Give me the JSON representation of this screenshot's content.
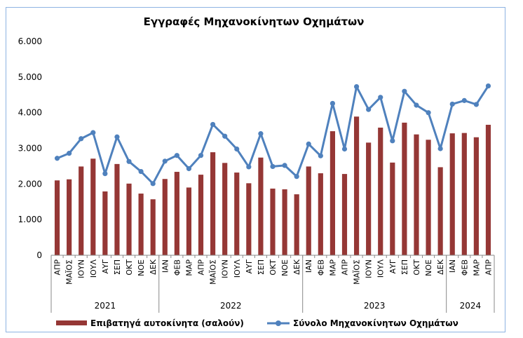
{
  "chart_data": {
    "type": "bar",
    "title": "Εγγραφές Μηχανοκίνητων Οχημάτων",
    "xlabel": "",
    "ylabel": "",
    "ylim": [
      0,
      6000
    ],
    "yticks": [
      "0",
      "1.000",
      "2.000",
      "3.000",
      "4.000",
      "5.000",
      "6.000"
    ],
    "grid": false,
    "legend_position": "bottom",
    "colors": {
      "bars": "#953735",
      "line": "#4f81bd"
    },
    "year_groups": [
      {
        "label": "2021",
        "start": 0,
        "end": 8
      },
      {
        "label": "2022",
        "start": 9,
        "end": 20
      },
      {
        "label": "2023",
        "start": 21,
        "end": 32
      },
      {
        "label": "2024",
        "start": 33,
        "end": 36
      }
    ],
    "categories": [
      "ΑΠΡ",
      "ΜΑΪΟΣ",
      "ΙΟΥΝ",
      "ΙΟΥΛ",
      "ΑΥΓ",
      "ΣΕΠ",
      "ΟΚΤ",
      "ΝΟΕ",
      "ΔΕΚ",
      "ΙΑΝ",
      "ΦΕΒ",
      "ΜΑΡ",
      "ΑΠΡ",
      "ΜΑΪΟΣ",
      "ΙΟΥΝ",
      "ΙΟΥΛ",
      "ΑΥΓ",
      "ΣΕΠ",
      "ΟΚΤ",
      "ΝΟΕ",
      "ΔΕΚ",
      "ΙΑΝ",
      "ΦΕΒ",
      "ΜΑΡ",
      "ΑΠΡ",
      "ΜΑΪΟΣ",
      "ΙΟΥΝ",
      "ΙΟΥΛ",
      "ΑΥΓ",
      "ΣΕΠ",
      "ΟΚΤ",
      "ΝΟΕ",
      "ΔΕΚ",
      "ΙΑΝ",
      "ΦΕΒ",
      "ΜΑΡ",
      "ΑΠΡ"
    ],
    "series": [
      {
        "name": "Επιβατηγά αυτοκίνητα (σαλούν)",
        "type": "bar",
        "values": [
          2100,
          2130,
          2490,
          2710,
          1790,
          2560,
          2010,
          1730,
          1570,
          2140,
          2340,
          1900,
          2260,
          2890,
          2590,
          2320,
          2020,
          2740,
          1870,
          1850,
          1710,
          2490,
          2300,
          3480,
          2280,
          3890,
          3160,
          3580,
          2600,
          3720,
          3390,
          3240,
          2470,
          3420,
          3430,
          3310,
          3660
        ]
      },
      {
        "name": "Σύνολο Μηχανοκίνητων Οχημάτων",
        "type": "line",
        "values": [
          2720,
          2860,
          3270,
          3440,
          2290,
          3320,
          2630,
          2350,
          2010,
          2640,
          2800,
          2430,
          2800,
          3670,
          3340,
          2980,
          2480,
          3410,
          2490,
          2520,
          2210,
          3120,
          2790,
          4260,
          2980,
          4730,
          4090,
          4430,
          3210,
          4600,
          4210,
          4000,
          2990,
          4240,
          4340,
          4230,
          4750
        ]
      }
    ]
  }
}
